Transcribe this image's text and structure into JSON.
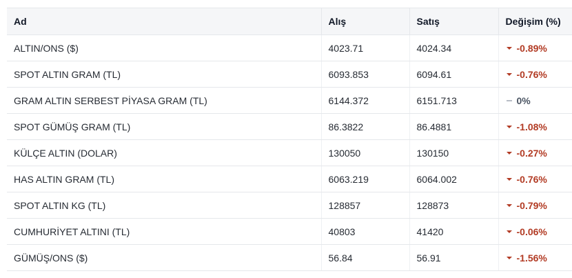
{
  "table": {
    "headers": {
      "name": "Ad",
      "buy": "Alış",
      "sell": "Satış",
      "change": "Değişim (%)"
    },
    "rows": [
      {
        "name": "ALTIN/ONS ($)",
        "buy": "4023.71",
        "sell": "4024.34",
        "change": "-0.89%",
        "direction": "down"
      },
      {
        "name": "SPOT ALTIN GRAM (TL)",
        "buy": "6093.853",
        "sell": "6094.61",
        "change": "-0.76%",
        "direction": "down"
      },
      {
        "name": "GRAM ALTIN SERBEST PİYASA GRAM (TL)",
        "buy": "6144.372",
        "sell": "6151.713",
        "change": "0%",
        "direction": "flat"
      },
      {
        "name": "SPOT GÜMÜŞ GRAM (TL)",
        "buy": "86.3822",
        "sell": "86.4881",
        "change": "-1.08%",
        "direction": "down"
      },
      {
        "name": "KÜLÇE ALTIN (DOLAR)",
        "buy": "130050",
        "sell": "130150",
        "change": "-0.27%",
        "direction": "down"
      },
      {
        "name": "HAS ALTIN GRAM (TL)",
        "buy": "6063.219",
        "sell": "6064.002",
        "change": "-0.76%",
        "direction": "down"
      },
      {
        "name": "SPOT ALTIN KG (TL)",
        "buy": "128857",
        "sell": "128873",
        "change": "-0.79%",
        "direction": "down"
      },
      {
        "name": "CUMHURİYET ALTINI (TL)",
        "buy": "40803",
        "sell": "41420",
        "change": "-0.06%",
        "direction": "down"
      },
      {
        "name": "GÜMÜŞ/ONS ($)",
        "buy": "56.84",
        "sell": "56.91",
        "change": "-1.56%",
        "direction": "down"
      }
    ]
  },
  "colors": {
    "down": "#b23b24",
    "flat": "#4b5563",
    "header_bg": "#f5f6f8",
    "border": "#e5e7eb"
  }
}
